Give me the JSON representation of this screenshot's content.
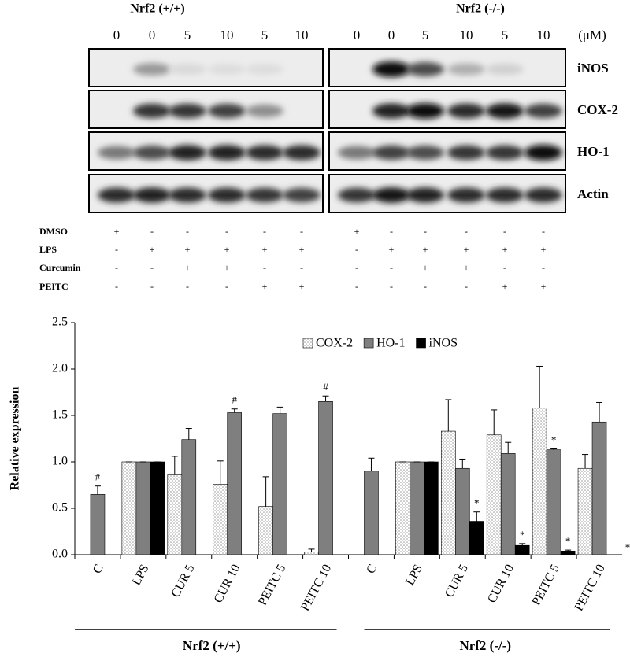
{
  "blot": {
    "groups": [
      "Nrf2 (+/+)",
      "Nrf2 (-/-)"
    ],
    "concentrations": [
      "0",
      "0",
      "5",
      "10",
      "5",
      "10",
      "0",
      "0",
      "5",
      "10",
      "5",
      "10"
    ],
    "unit": "(μM)",
    "proteins": [
      "iNOS",
      "COX-2",
      "HO-1",
      "Actin"
    ],
    "treatments": [
      {
        "name": "DMSO",
        "marks": [
          "+",
          "-",
          "-",
          "-",
          "-",
          "-",
          "+",
          "-",
          "-",
          "-",
          "-",
          "-"
        ]
      },
      {
        "name": "LPS",
        "marks": [
          "-",
          "+",
          "+",
          "+",
          "+",
          "+",
          "-",
          "+",
          "+",
          "+",
          "+",
          "+"
        ]
      },
      {
        "name": "Curcumin",
        "marks": [
          "-",
          "-",
          "+",
          "+",
          "-",
          "-",
          "-",
          "-",
          "+",
          "+",
          "-",
          "-"
        ]
      },
      {
        "name": "PEITC",
        "marks": [
          "-",
          "-",
          "-",
          "-",
          "+",
          "+",
          "-",
          "-",
          "-",
          "-",
          "+",
          "+"
        ]
      }
    ]
  },
  "chart_data": {
    "type": "bar",
    "y_label": "Relative expression",
    "categories": [
      "C",
      "LPS",
      "CUR 5",
      "CUR 10",
      "PEITC 5",
      "PEITC 10",
      "C",
      "LPS",
      "CUR 5",
      "CUR 10",
      "PEITC 5",
      "PEITC 10"
    ],
    "groups": [
      {
        "label": "Nrf2 (+/+)",
        "from": 0,
        "to": 5
      },
      {
        "label": "Nrf2 (-/-)",
        "from": 6,
        "to": 11
      }
    ],
    "series": [
      {
        "name": "COX-2",
        "color": "#9a9a9a",
        "pattern": "dots",
        "values": [
          null,
          1.0,
          0.86,
          0.76,
          0.52,
          0.03,
          null,
          1.0,
          1.33,
          1.29,
          1.58,
          0.93
        ],
        "errors": [
          null,
          0,
          0.2,
          0.25,
          0.32,
          0.03,
          null,
          0,
          0.34,
          0.27,
          0.45,
          0.15
        ],
        "markers": [
          null,
          null,
          null,
          null,
          null,
          null,
          null,
          null,
          null,
          null,
          null,
          null
        ]
      },
      {
        "name": "HO-1",
        "color": "#7f7f7f",
        "values": [
          0.65,
          1.0,
          1.24,
          1.53,
          1.52,
          1.65,
          0.9,
          1.0,
          0.93,
          1.09,
          1.13,
          1.43
        ],
        "errors": [
          0.09,
          0,
          0.12,
          0.04,
          0.07,
          0.06,
          0.14,
          0,
          0.1,
          0.12,
          0.01,
          0.21
        ],
        "markers": [
          "#",
          null,
          null,
          "#",
          null,
          "#",
          null,
          null,
          null,
          null,
          "*",
          null
        ]
      },
      {
        "name": "iNOS",
        "color": "#000000",
        "values": [
          null,
          1.0,
          null,
          null,
          null,
          null,
          null,
          1.0,
          0.36,
          0.1,
          0.04,
          null
        ],
        "errors": [
          null,
          0,
          null,
          null,
          null,
          null,
          null,
          0,
          0.1,
          0.02,
          0.01,
          null
        ],
        "markers": [
          null,
          null,
          null,
          null,
          null,
          null,
          null,
          null,
          "*",
          "*",
          "*",
          "*"
        ]
      }
    ],
    "ylim": [
      0,
      2.5
    ],
    "yticks": [
      {
        "value": 0,
        "label": "0.0"
      },
      0.5,
      {
        "value": 1,
        "label": "1.0"
      },
      1.5,
      {
        "value": 2,
        "label": "2.0"
      },
      2.5
    ],
    "grid": false,
    "legend": "top"
  }
}
